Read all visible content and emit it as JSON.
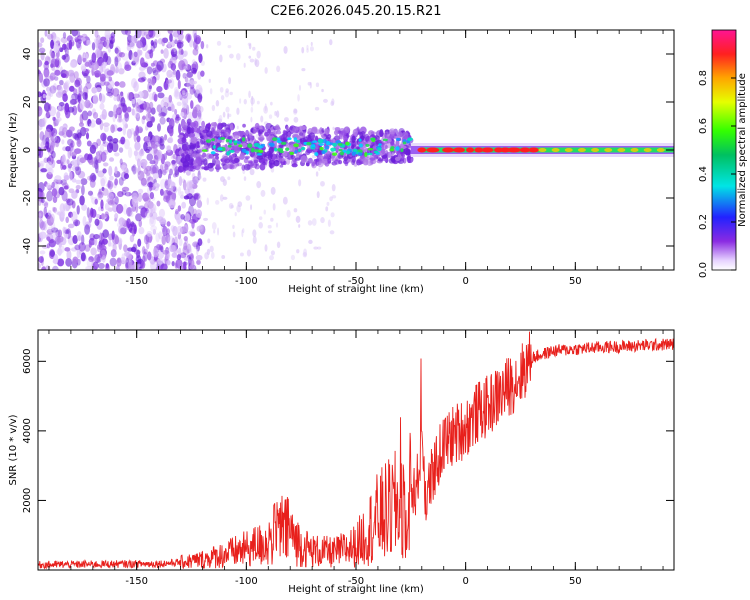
{
  "title": "C2E6.2026.045.20.15.R21",
  "chart_data": [
    {
      "type": "heatmap",
      "name": "spectrogram",
      "xlabel": "Height of straight line (km)",
      "ylabel": "Frequency (Hz)",
      "xlim": [
        -195,
        95
      ],
      "ylim": [
        -50,
        50
      ],
      "xticks": [
        -150,
        -100,
        -50,
        0,
        50
      ],
      "yticks": [
        -40,
        -20,
        0,
        20,
        40
      ],
      "colorbar": {
        "label": "Normalized spectral amplitude",
        "range": [
          0,
          1
        ],
        "ticks": [
          0.0,
          0.2,
          0.4,
          0.6,
          0.8
        ]
      }
    },
    {
      "type": "line",
      "name": "snr",
      "xlabel": "Height of straight line (km)",
      "ylabel": "SNR (10 * v/v)",
      "xlim": [
        -195,
        95
      ],
      "ylim": [
        0,
        6900
      ],
      "xticks": [
        -150,
        -100,
        -50,
        0,
        50
      ],
      "yticks": [
        2000,
        4000,
        6000
      ],
      "color": "#e8201c",
      "x": [
        -195,
        -180,
        -160,
        -140,
        -130,
        -120,
        -110,
        -100,
        -90,
        -85,
        -80,
        -75,
        -70,
        -60,
        -50,
        -45,
        -40,
        -35,
        -30,
        -25,
        -22,
        -20,
        -18,
        -15,
        -10,
        -5,
        0,
        5,
        10,
        15,
        20,
        25,
        30,
        40,
        50,
        60,
        70,
        80,
        90,
        95
      ],
      "y": [
        150,
        160,
        170,
        180,
        220,
        300,
        450,
        600,
        800,
        1200,
        1100,
        700,
        550,
        500,
        700,
        1100,
        1500,
        1700,
        1900,
        2200,
        2500,
        3800,
        2000,
        2800,
        3600,
        3900,
        4100,
        4500,
        4700,
        5000,
        5300,
        5600,
        6100,
        6300,
        6350,
        6400,
        6420,
        6450,
        6480,
        6500
      ]
    }
  ]
}
